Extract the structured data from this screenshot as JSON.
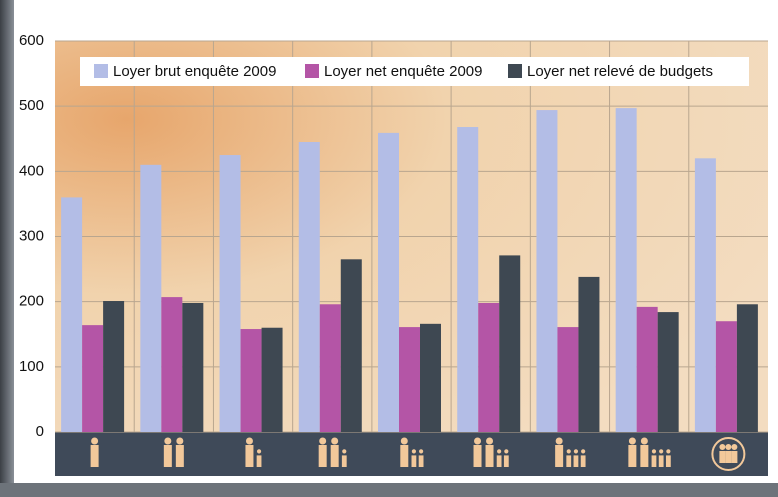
{
  "chart_data": {
    "type": "bar",
    "categories": [
      null,
      null,
      null,
      null,
      null,
      null,
      null,
      null,
      null
    ],
    "series": [
      {
        "name": "Loyer brut enquête 2009",
        "color": "#b3bde6",
        "values": [
          360,
          410,
          425,
          445,
          459,
          468,
          494,
          497,
          420
        ]
      },
      {
        "name": "Loyer net enquête 2009",
        "color": "#b455a6",
        "values": [
          164,
          207,
          158,
          196,
          161,
          198,
          161,
          192,
          170
        ]
      },
      {
        "name": "Loyer net relevé de budgets",
        "color": "#3e4852",
        "values": [
          201,
          198,
          160,
          265,
          166,
          271,
          238,
          184,
          196
        ]
      }
    ],
    "ylim": [
      0,
      600
    ],
    "yticks": [
      0,
      100,
      200,
      300,
      400,
      500,
      600
    ],
    "grid": true,
    "legend": "top"
  }
}
